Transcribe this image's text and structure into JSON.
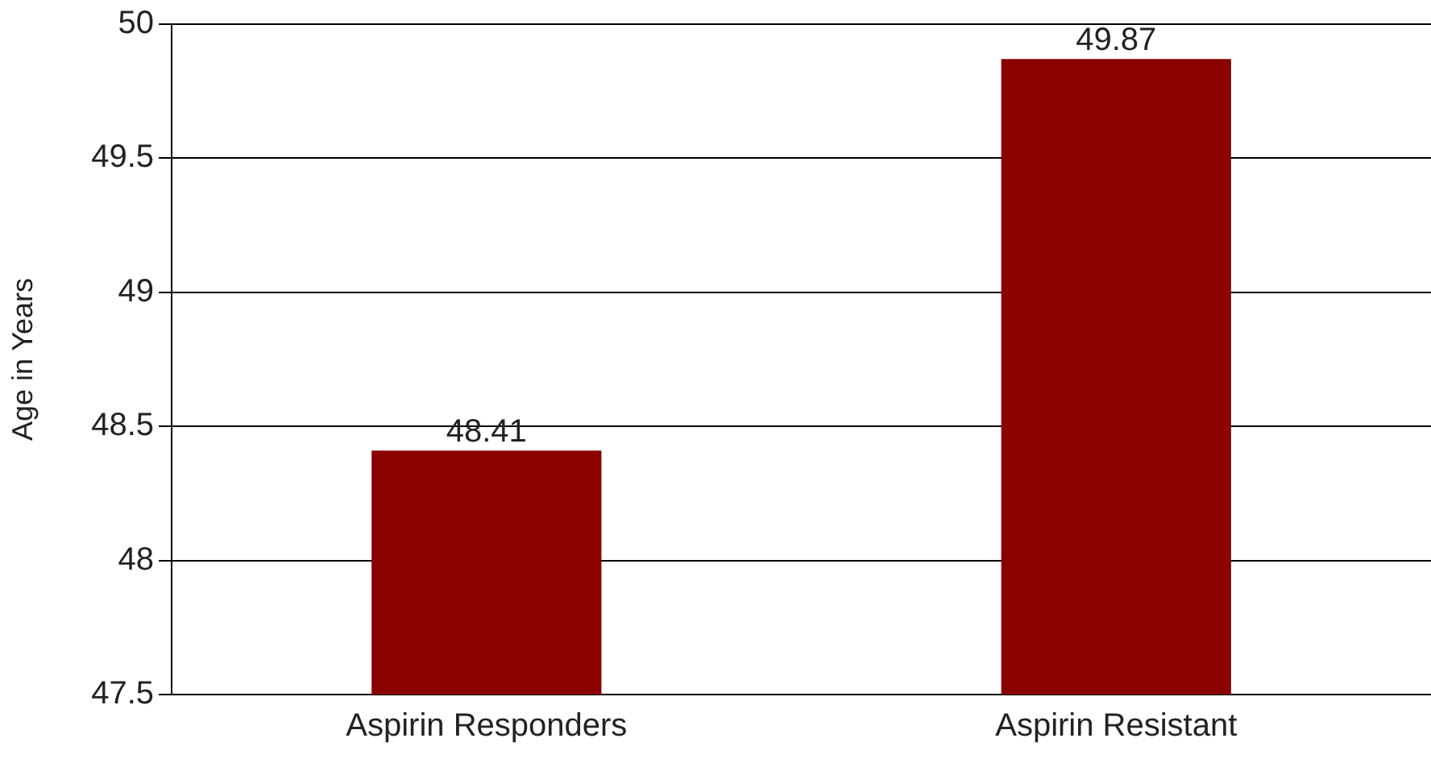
{
  "chart_data": {
    "type": "bar",
    "ylabel": "Age in Years",
    "categories": [
      "Aspirin Responders",
      "Aspirin Resistant"
    ],
    "values": [
      48.41,
      49.87
    ],
    "color": "#8b0000",
    "ylim": [
      47.5,
      50
    ],
    "yticks": [
      47.5,
      48,
      48.5,
      49,
      49.5,
      50
    ],
    "grid": "y",
    "data_labels": true,
    "legend": false
  }
}
